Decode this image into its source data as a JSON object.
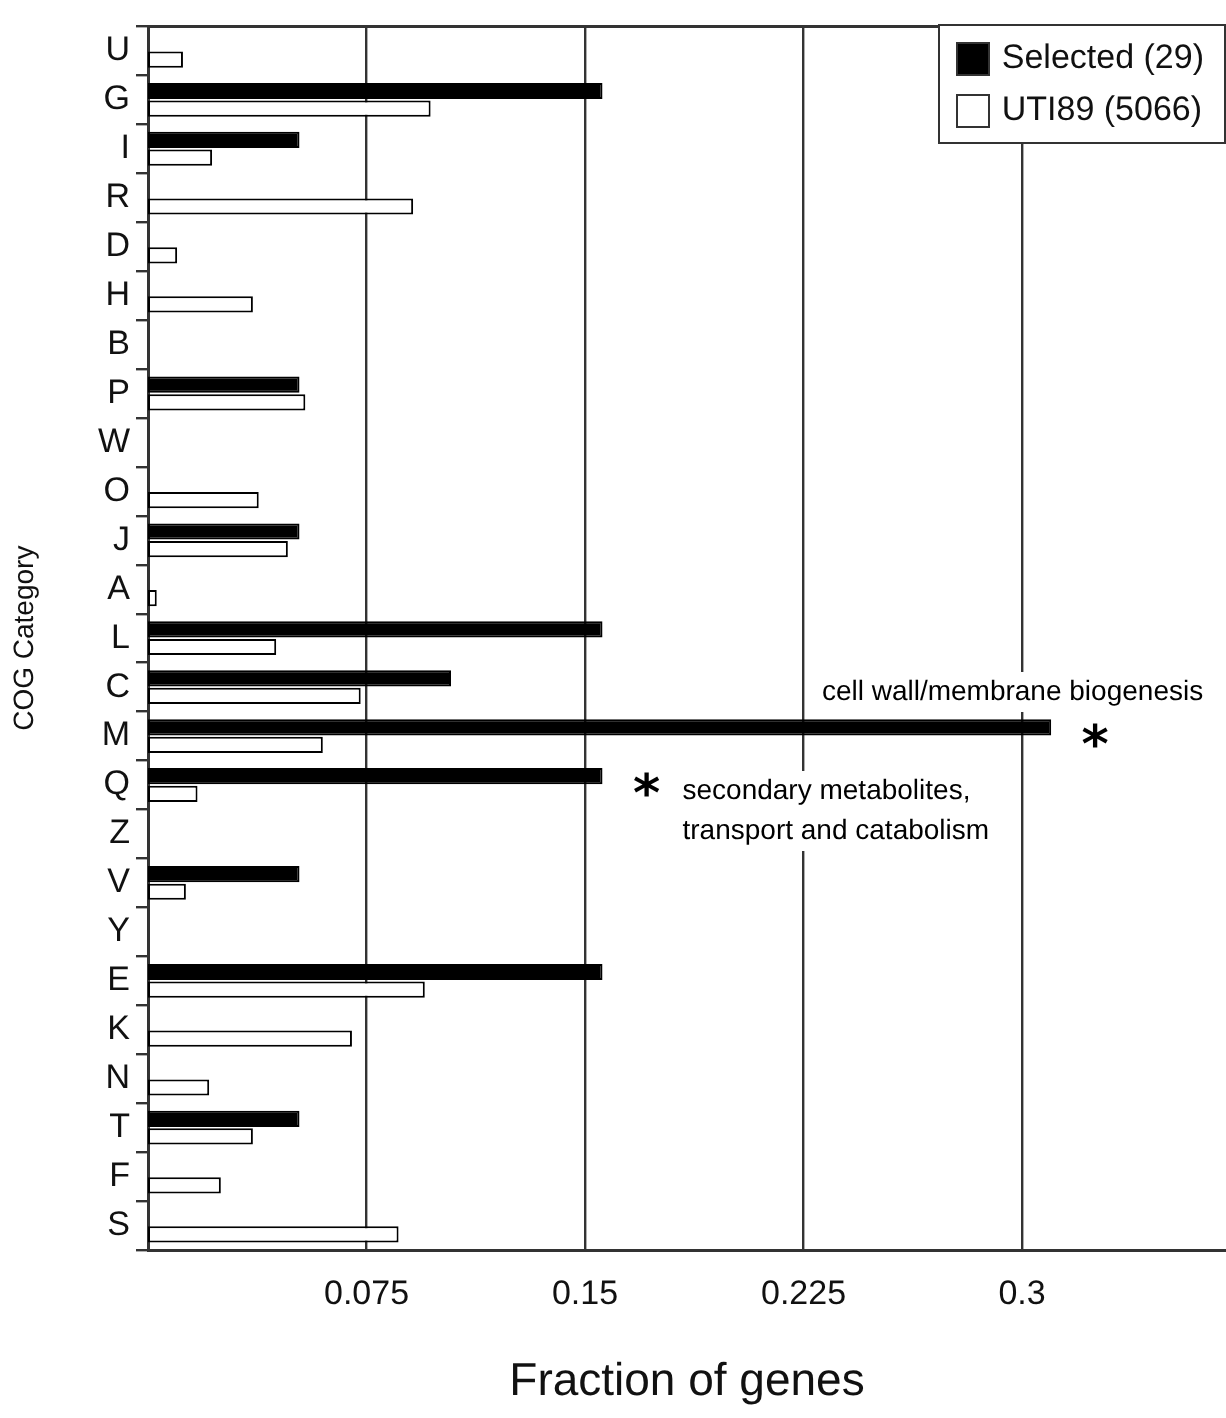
{
  "chart_data": {
    "type": "bar",
    "orientation": "horizontal",
    "xlabel": "Fraction of genes",
    "ylabel": "COG Category",
    "categories": [
      "U",
      "G",
      "I",
      "R",
      "D",
      "H",
      "B",
      "P",
      "W",
      "O",
      "J",
      "A",
      "L",
      "C",
      "M",
      "Q",
      "Z",
      "V",
      "Y",
      "E",
      "K",
      "N",
      "T",
      "F",
      "S"
    ],
    "series": [
      {
        "name": "Selected (29)",
        "color": "#000000",
        "values": [
          0,
          0.156,
          0.052,
          0,
          0,
          0,
          0,
          0.052,
          0,
          0,
          0.052,
          0,
          0.156,
          0.104,
          0.31,
          0.156,
          0,
          0.052,
          0,
          0.156,
          0,
          0,
          0.052,
          0,
          0
        ]
      },
      {
        "name": "UTI89 (5066)",
        "color": "#ffffff",
        "values": [
          0.012,
          0.097,
          0.022,
          0.091,
          0.01,
          0.036,
          0,
          0.054,
          0,
          0.038,
          0.048,
          0.003,
          0.044,
          0.073,
          0.06,
          0.017,
          0,
          0.013,
          0,
          0.095,
          0.07,
          0.021,
          0.036,
          0.025,
          0.086
        ]
      }
    ],
    "xlim": [
      0,
      0.37
    ],
    "xticks": [
      0.075,
      0.15,
      0.225,
      0.3
    ],
    "grid": "x",
    "legend": "top right",
    "annotations": [
      {
        "text": "cell wall/membrane biogenesis",
        "y": "M"
      },
      {
        "text": "*",
        "x": 0.31,
        "y": "M"
      },
      {
        "text": "*",
        "x": 0.156,
        "y": "Q"
      },
      "secondary metabolites,\ntransport and catabolism"
    ]
  }
}
